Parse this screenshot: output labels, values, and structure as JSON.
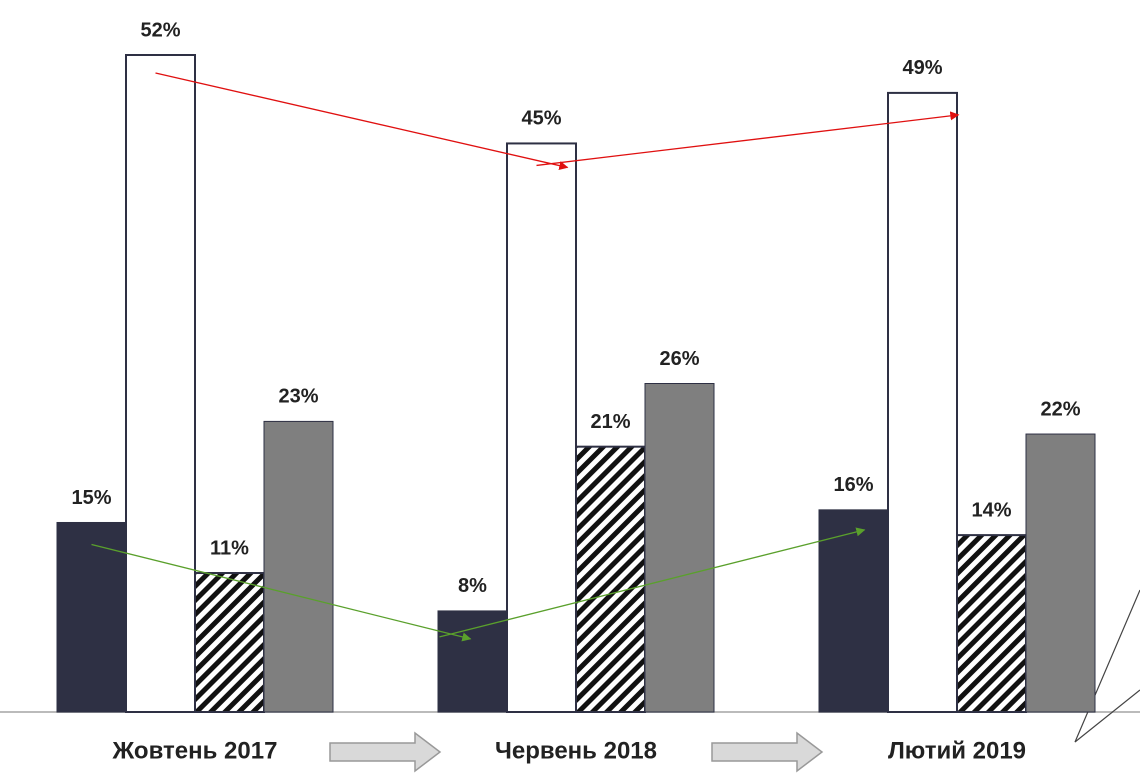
{
  "chart_data": {
    "type": "bar",
    "categories": [
      "Жовтень 2017",
      "Червень 2018",
      "Лютий 2019"
    ],
    "series": [
      {
        "color": "#2e3044",
        "values": [
          15,
          8,
          16
        ],
        "value_labels": [
          "15%",
          "8%",
          "16%"
        ]
      },
      {
        "color": "#ffffff",
        "values": [
          52,
          45,
          49
        ],
        "value_labels": [
          "52%",
          "45%",
          "49%"
        ]
      },
      {
        "color": "hatch",
        "values": [
          11,
          21,
          14
        ],
        "value_labels": [
          "11%",
          "21%",
          "14%"
        ]
      },
      {
        "color": "#7f7f7f",
        "values": [
          23,
          26,
          22
        ],
        "value_labels": [
          "23%",
          "26%",
          "22%"
        ]
      }
    ]
  }
}
